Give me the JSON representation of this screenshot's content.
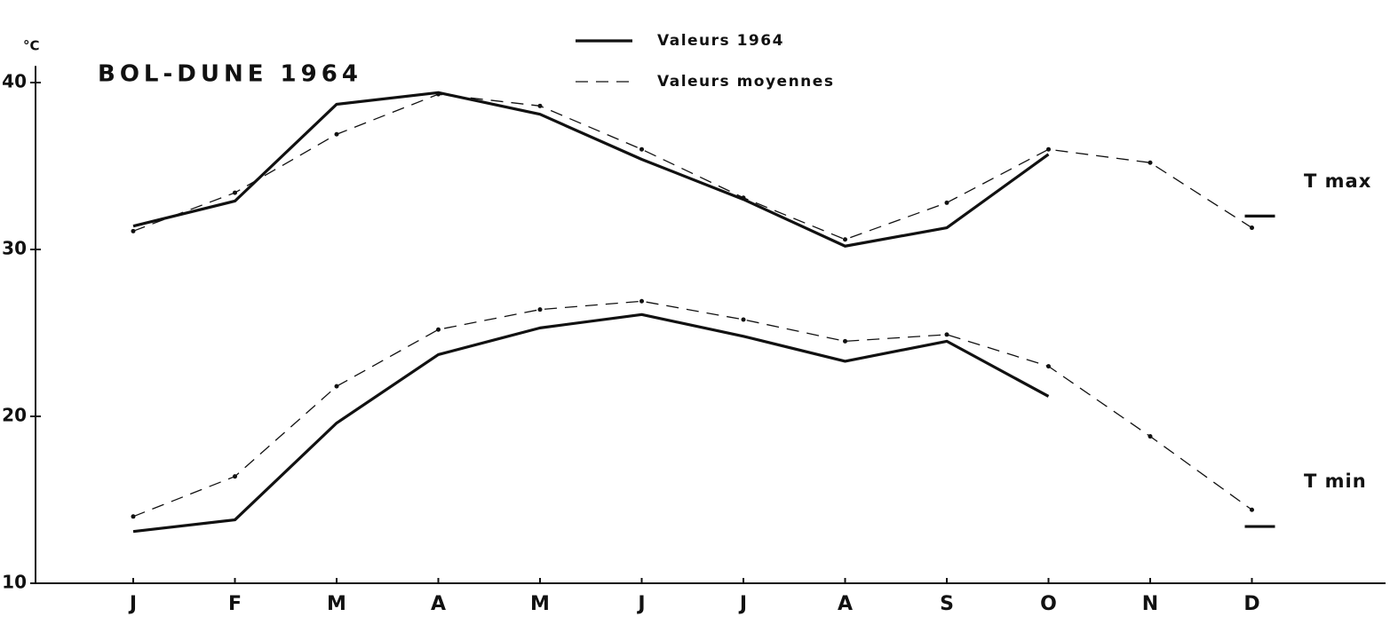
{
  "chart_data": {
    "type": "line",
    "title": "BOL-DUNE 1964",
    "y_label": "°C",
    "categories": [
      "J",
      "F",
      "M",
      "A",
      "M",
      "J",
      "J",
      "A",
      "S",
      "O",
      "N",
      "D"
    ],
    "ylim": [
      10,
      41
    ],
    "yticks": [
      10,
      20,
      30,
      40
    ],
    "legend": [
      {
        "label": "Valeurs 1964",
        "style": "solid"
      },
      {
        "label": "Valeurs moyennes",
        "style": "dashed"
      }
    ],
    "annotations": [
      "T max",
      "T min"
    ],
    "color": "#111111",
    "series": [
      {
        "legend": 0,
        "annotation": 0,
        "values": [
          31.4,
          32.9,
          38.7,
          39.4,
          38.1,
          35.4,
          33.0,
          30.2,
          31.3,
          35.7,
          null,
          32.0
        ]
      },
      {
        "legend": 1,
        "annotation": 0,
        "values": [
          31.1,
          33.4,
          36.9,
          39.3,
          38.6,
          36.0,
          33.1,
          30.6,
          32.8,
          36.0,
          35.2,
          31.3
        ]
      },
      {
        "legend": 0,
        "annotation": 1,
        "values": [
          13.1,
          13.8,
          19.6,
          23.7,
          25.3,
          26.1,
          24.8,
          23.3,
          24.5,
          21.2,
          null,
          13.4
        ]
      },
      {
        "legend": 1,
        "annotation": 1,
        "values": [
          14.0,
          16.4,
          21.8,
          25.2,
          26.4,
          26.9,
          25.8,
          24.5,
          24.9,
          23.0,
          18.8,
          14.4
        ]
      }
    ]
  }
}
